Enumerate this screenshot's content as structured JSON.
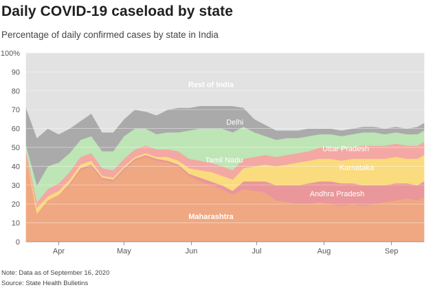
{
  "header": {
    "title": "Daily COVID-19 caseload by state",
    "subtitle": "Percentage of daily confirmed cases by state in India"
  },
  "footer": {
    "note": "Note: Data as of September 16, 2020",
    "source": "Source: State Health Bulletins"
  },
  "chart_data": {
    "type": "area",
    "stacked": true,
    "normalized_percent": true,
    "title": "Daily COVID-19 caseload by state",
    "subtitle": "Percentage of daily confirmed cases by state in India",
    "xlabel": "",
    "ylabel": "",
    "ylim": [
      0,
      100
    ],
    "yticks": [
      0,
      10,
      20,
      30,
      40,
      50,
      60,
      70,
      80,
      90,
      100
    ],
    "y_tick_labels": [
      "0",
      "10",
      "20",
      "30",
      "40",
      "50",
      "60",
      "70",
      "80",
      "90",
      "100%"
    ],
    "x_ticks": [
      {
        "label": "Apr",
        "day": 15
      },
      {
        "label": "May",
        "day": 45
      },
      {
        "label": "Jun",
        "day": 76
      },
      {
        "label": "Jul",
        "day": 106
      },
      {
        "label": "Aug",
        "day": 137
      },
      {
        "label": "Sep",
        "day": 168
      }
    ],
    "x_domain_days": [
      0,
      183
    ],
    "x_note": "x values are days since March 17, 2020",
    "x": [
      0,
      5,
      10,
      15,
      20,
      25,
      30,
      35,
      40,
      45,
      50,
      55,
      60,
      65,
      70,
      75,
      80,
      85,
      90,
      95,
      100,
      105,
      110,
      115,
      120,
      125,
      130,
      135,
      140,
      145,
      150,
      155,
      160,
      165,
      170,
      175,
      180,
      183
    ],
    "series": [
      {
        "name": "Maharashtra",
        "color": "#f0a882",
        "values": [
          45,
          15,
          22,
          25,
          30,
          38,
          40,
          33,
          32,
          38,
          43,
          45,
          43,
          42,
          40,
          35,
          32,
          30,
          28,
          25,
          28,
          27,
          26,
          22,
          21,
          20,
          20,
          21,
          20,
          19,
          20,
          19,
          20,
          21,
          22,
          23,
          22,
          24
        ]
      },
      {
        "name": "Andhra Pradesh",
        "color": "#e9979a",
        "values": [
          0,
          0,
          0,
          0,
          1,
          1,
          1,
          1,
          1,
          1,
          1,
          1,
          1,
          1,
          1,
          1,
          2,
          2,
          2,
          2,
          4,
          5,
          6,
          8,
          9,
          10,
          11,
          11,
          12,
          12,
          11,
          11,
          10,
          9,
          9,
          8,
          8,
          8
        ]
      },
      {
        "name": "Karnataka",
        "color": "#fadb7e",
        "values": [
          0,
          3,
          2,
          2,
          2,
          2,
          2,
          1,
          1,
          1,
          1,
          1,
          1,
          2,
          2,
          3,
          4,
          5,
          5,
          6,
          7,
          8,
          9,
          10,
          11,
          12,
          12,
          12,
          12,
          12,
          13,
          14,
          14,
          14,
          14,
          13,
          14,
          14
        ]
      },
      {
        "name": "Uttar Pradesh",
        "color": "#f4a8a3",
        "values": [
          3,
          3,
          4,
          4,
          4,
          4,
          4,
          4,
          4,
          4,
          4,
          4,
          4,
          4,
          5,
          5,
          5,
          5,
          5,
          5,
          5,
          5,
          5,
          5,
          5,
          5,
          5,
          6,
          6,
          6,
          6,
          7,
          7,
          7,
          7,
          7,
          7,
          7
        ]
      },
      {
        "name": "Tamil Nadu",
        "color": "#bee5b5",
        "values": [
          3,
          9,
          12,
          11,
          10,
          9,
          9,
          9,
          10,
          12,
          11,
          9,
          8,
          9,
          10,
          15,
          17,
          18,
          20,
          20,
          17,
          13,
          10,
          9,
          9,
          8,
          8,
          7,
          7,
          7,
          7,
          7,
          7,
          6,
          6,
          6,
          6,
          6
        ]
      },
      {
        "name": "Delhi",
        "color": "#aaaaaa",
        "values": [
          20,
          25,
          20,
          15,
          13,
          10,
          12,
          10,
          10,
          9,
          10,
          9,
          10,
          12,
          13,
          12,
          12,
          12,
          12,
          14,
          10,
          7,
          6,
          5,
          4,
          4,
          4,
          3,
          3,
          3,
          3,
          3,
          3,
          3,
          3,
          3,
          4,
          4
        ]
      },
      {
        "name": "Rest of India",
        "color": "#e2e2e2",
        "values": [
          29,
          45,
          40,
          43,
          40,
          36,
          32,
          42,
          42,
          35,
          30,
          31,
          33,
          30,
          29,
          29,
          28,
          28,
          28,
          28,
          29,
          35,
          38,
          41,
          41,
          41,
          40,
          40,
          40,
          41,
          40,
          39,
          39,
          40,
          39,
          40,
          39,
          37
        ]
      }
    ],
    "labels": [
      {
        "series": "Rest of India",
        "text": "Rest of India",
        "day": 85,
        "y": 82,
        "bold": true
      },
      {
        "series": "Delhi",
        "text": "Delhi",
        "day": 96,
        "y": 62
      },
      {
        "series": "Tamil Nadu",
        "text": "Tamil Nadu",
        "day": 91,
        "y": 42
      },
      {
        "series": "Uttar Pradesh",
        "text": "Uttar Pradesh",
        "day": 147,
        "y": 48
      },
      {
        "series": "Karnataka",
        "text": "Karnataka",
        "day": 152,
        "y": 38
      },
      {
        "series": "Andhra Pradesh",
        "text": "Andhra Pradesh",
        "day": 143,
        "y": 24
      },
      {
        "series": "Maharashtra",
        "text": "Maharashtra",
        "day": 85,
        "y": 12,
        "bold": true
      }
    ]
  }
}
